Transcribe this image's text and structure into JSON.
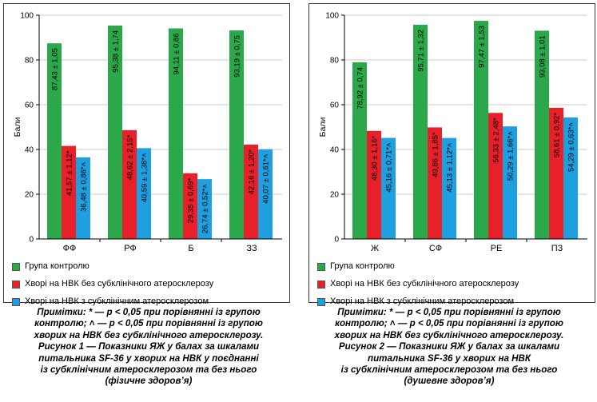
{
  "colors": {
    "series": [
      "#2ba84a",
      "#e8202a",
      "#1e9fe0"
    ],
    "grid": "#cccccc"
  },
  "figures": [
    {
      "note_lines": [
        "Примітки: * — р < 0,05 при порівнянні із групою",
        "контролю; ˄ — р < 0,05 при порівнянні із групою",
        "хворих на НВК без субклінічного атеросклерозу."
      ],
      "caption_lines": [
        "Рисунок 1 — Показники ЯЖ у балах за шкалами",
        "питальника SF-36 у хворих на НВК у поєднанні",
        "із субклінічним атеросклерозом та без нього",
        "(фізичне здоров’я)"
      ]
    },
    {
      "note_lines": [
        "Примітки: * — р < 0,05 при порівнянні із групою",
        "контролю; ˄ — р < 0,05 при порівнянні із групою",
        "хворих на НВК без субклінічного атеросклерозу."
      ],
      "caption_lines": [
        "Рисунок 2 — Показники ЯЖ у балах за шкалами",
        "питальника SF-36 у хворих на НВК",
        "із субклінічним атеросклерозом та без нього",
        "(душевне здоров’я)"
      ]
    }
  ],
  "chart_data": [
    {
      "type": "bar",
      "ylabel": "Бали",
      "ylim": [
        0,
        100
      ],
      "yticks": [
        0,
        20,
        40,
        60,
        80,
        100
      ],
      "grid": true,
      "legend_position": "bottom",
      "categories": [
        "ФФ",
        "РФ",
        "Б",
        "ЗЗ"
      ],
      "series": [
        {
          "name": "Група контролю",
          "values": [
            87.43,
            95.38,
            94.11,
            93.19
          ],
          "labels": [
            "87,43 ± 1,05",
            "95,38 ± 1,74",
            "94,11 ± 0,86",
            "93,19 ± 0,75"
          ]
        },
        {
          "name": "Хворі на НВК без субклінічного атеросклерозу",
          "values": [
            41.57,
            48.62,
            29.35,
            42.16
          ],
          "labels": [
            "41,57 ± 1,12*",
            "48,62 ± 2,15*",
            "29,35 ± 0,69*",
            "42,16 ± 1,20*"
          ]
        },
        {
          "name": "Хворі на НВК з субклінічним атеросклерозом",
          "values": [
            36.48,
            40.59,
            26.74,
            40.07
          ],
          "labels": [
            "36,48 ± 0,86*˄",
            "40,59 ± 1,38*˄",
            "26,74 ± 0,52*˄",
            "40,07 ± 0,61*˄"
          ]
        }
      ]
    },
    {
      "type": "bar",
      "ylabel": "Бали",
      "ylim": [
        0,
        100
      ],
      "yticks": [
        0,
        20,
        40,
        60,
        80,
        100
      ],
      "grid": true,
      "legend_position": "bottom",
      "categories": [
        "Ж",
        "СФ",
        "РЕ",
        "ПЗ"
      ],
      "series": [
        {
          "name": "Група контролю",
          "values": [
            78.92,
            95.71,
            97.47,
            93.08
          ],
          "labels": [
            "78,92 ± 0,74",
            "95,71 ± 1,32",
            "97,47 ± 1,53",
            "93,08 ± 1,01"
          ]
        },
        {
          "name": "Хворі на НВК без субклінічного атеросклерозу",
          "values": [
            48.3,
            49.86,
            56.33,
            58.61
          ],
          "labels": [
            "48,30 ± 1,16*",
            "49,86 ± 1,85*",
            "56,33 ± 2,48*",
            "58,61 ± 0,92*"
          ]
        },
        {
          "name": "Хворі на НВК з субклінічним атеросклерозом",
          "values": [
            45.16,
            45.13,
            50.29,
            54.29
          ],
          "labels": [
            "45,16 ± 0,71*˄",
            "45,13 ± 1,12*˄",
            "50,29 ± 1,66*˄",
            "54,29 ± 0,63*˄"
          ]
        }
      ]
    }
  ]
}
